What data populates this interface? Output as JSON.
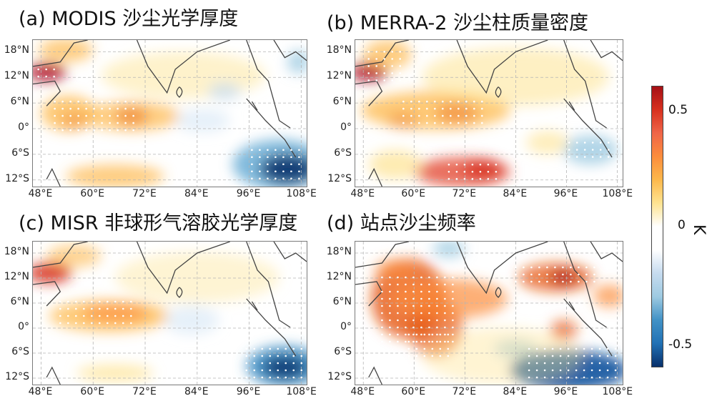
{
  "panels": [
    {
      "id": "a",
      "title": "(a)   MODIS 沙尘光学厚度"
    },
    {
      "id": "b",
      "title": "(b)  MERRA-2 沙尘柱质量密度"
    },
    {
      "id": "c",
      "title": "(c) MISR 非球形气溶胶光学厚度"
    },
    {
      "id": "d",
      "title": "(d)              站点沙尘频率"
    }
  ],
  "axes": {
    "lat_ticks": [
      "18°N",
      "12°N",
      "6°N",
      "0°",
      "6°S",
      "12°S"
    ],
    "lon_ticks": [
      "48°E",
      "60°E",
      "72°E",
      "84°E",
      "96°E",
      "108°E"
    ]
  },
  "colorbar": {
    "ticks": [
      "0.5",
      "0",
      "-0.5"
    ],
    "unit": "K",
    "colors_top_to_bottom": [
      "#a50f15",
      "#d7301f",
      "#ef6548",
      "#fc8d3c",
      "#fdb84b",
      "#fee391",
      "#ffffff",
      "#ffffff",
      "#c6dbef",
      "#9ecae1",
      "#4292c6",
      "#2171b5",
      "#08306b"
    ]
  }
}
